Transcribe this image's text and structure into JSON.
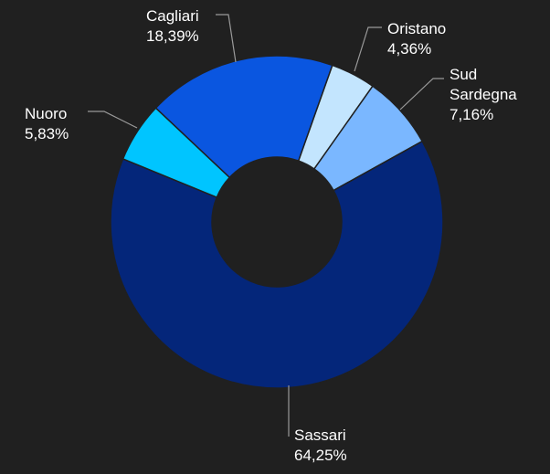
{
  "chart_data": {
    "type": "pie",
    "donut": true,
    "title": "",
    "categories": [
      "Oristano",
      "Sud Sardegna",
      "Sassari",
      "Nuoro",
      "Cagliari"
    ],
    "values": [
      4.36,
      7.16,
      64.25,
      5.83,
      18.39
    ],
    "labels": [
      {
        "name": "Oristano",
        "value": "4,36%"
      },
      {
        "name": "Sud Sardegna",
        "lines": [
          "Sud",
          "Sardegna"
        ],
        "value": "7,16%"
      },
      {
        "name": "Sassari",
        "value": "64,25%"
      },
      {
        "name": "Nuoro",
        "value": "5,83%"
      },
      {
        "name": "Cagliari",
        "value": "18,39%"
      }
    ],
    "colors": [
      "#c3e5fe",
      "#7ab7ff",
      "#04267a",
      "#00c5ff",
      "#0a56e0"
    ],
    "legend": "none",
    "background": "#202020"
  }
}
